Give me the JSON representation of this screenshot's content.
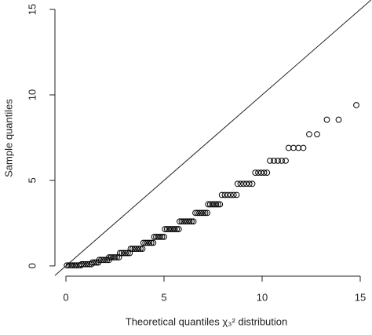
{
  "chart_data": {
    "type": "scatter",
    "xlabel": "Theoretical quantiles χ₃² distribution",
    "ylabel": "Sample quantiles",
    "x": [
      0.05,
      0.15,
      0.25,
      0.35,
      0.45,
      0.55,
      0.65,
      0.75,
      0.8,
      0.9,
      1.0,
      1.1,
      1.2,
      1.3,
      1.35,
      1.45,
      1.55,
      1.65,
      1.7,
      1.8,
      1.9,
      2.0,
      2.1,
      2.2,
      2.2,
      2.3,
      2.4,
      2.5,
      2.6,
      2.7,
      2.75,
      2.85,
      2.95,
      3.05,
      3.15,
      3.25,
      3.3,
      3.4,
      3.5,
      3.6,
      3.7,
      3.8,
      3.9,
      3.95,
      4.05,
      4.15,
      4.25,
      4.35,
      4.45,
      4.5,
      4.6,
      4.7,
      4.8,
      4.9,
      5.0,
      5.05,
      5.15,
      5.25,
      5.35,
      5.45,
      5.55,
      5.65,
      5.75,
      5.8,
      5.9,
      6.0,
      6.1,
      6.2,
      6.3,
      6.4,
      6.5,
      6.6,
      6.7,
      6.8,
      6.9,
      7.0,
      7.1,
      7.2,
      7.25,
      7.35,
      7.45,
      7.55,
      7.65,
      7.75,
      7.85,
      7.95,
      8.1,
      8.25,
      8.4,
      8.55,
      8.7,
      8.75,
      8.9,
      9.05,
      9.2,
      9.35,
      9.5,
      9.65,
      9.8,
      9.95,
      10.1,
      10.25,
      10.4,
      10.6,
      10.8,
      11.0,
      11.2,
      11.35,
      11.6,
      11.85,
      12.1,
      12.4,
      12.8,
      13.3,
      13.9,
      14.8
    ],
    "values": [
      0.03,
      0.03,
      0.03,
      0.03,
      0.03,
      0.03,
      0.03,
      0.03,
      0.1,
      0.1,
      0.1,
      0.1,
      0.1,
      0.1,
      0.2,
      0.2,
      0.2,
      0.2,
      0.35,
      0.35,
      0.35,
      0.35,
      0.35,
      0.35,
      0.5,
      0.5,
      0.5,
      0.5,
      0.5,
      0.5,
      0.75,
      0.75,
      0.75,
      0.75,
      0.75,
      0.75,
      1.0,
      1.0,
      1.0,
      1.0,
      1.0,
      1.0,
      1.0,
      1.35,
      1.35,
      1.35,
      1.35,
      1.35,
      1.35,
      1.7,
      1.7,
      1.7,
      1.7,
      1.7,
      1.7,
      2.15,
      2.15,
      2.15,
      2.15,
      2.15,
      2.15,
      2.15,
      2.15,
      2.6,
      2.6,
      2.6,
      2.6,
      2.6,
      2.6,
      2.6,
      2.6,
      3.1,
      3.1,
      3.1,
      3.1,
      3.1,
      3.1,
      3.1,
      3.6,
      3.6,
      3.6,
      3.6,
      3.6,
      3.6,
      3.6,
      4.15,
      4.15,
      4.15,
      4.15,
      4.15,
      4.15,
      4.8,
      4.8,
      4.8,
      4.8,
      4.8,
      4.8,
      5.45,
      5.45,
      5.45,
      5.45,
      5.45,
      6.15,
      6.15,
      6.15,
      6.15,
      6.15,
      6.9,
      6.9,
      6.9,
      6.9,
      7.7,
      7.7,
      8.55,
      8.55,
      9.4
    ],
    "color": "#000000",
    "reference_line": true,
    "xlim": [
      -0.56,
      15.6
    ],
    "ylim": [
      -0.6,
      15.55
    ],
    "xticks": [
      0,
      5,
      10,
      15
    ],
    "yticks": [
      0,
      5,
      10,
      15
    ]
  }
}
